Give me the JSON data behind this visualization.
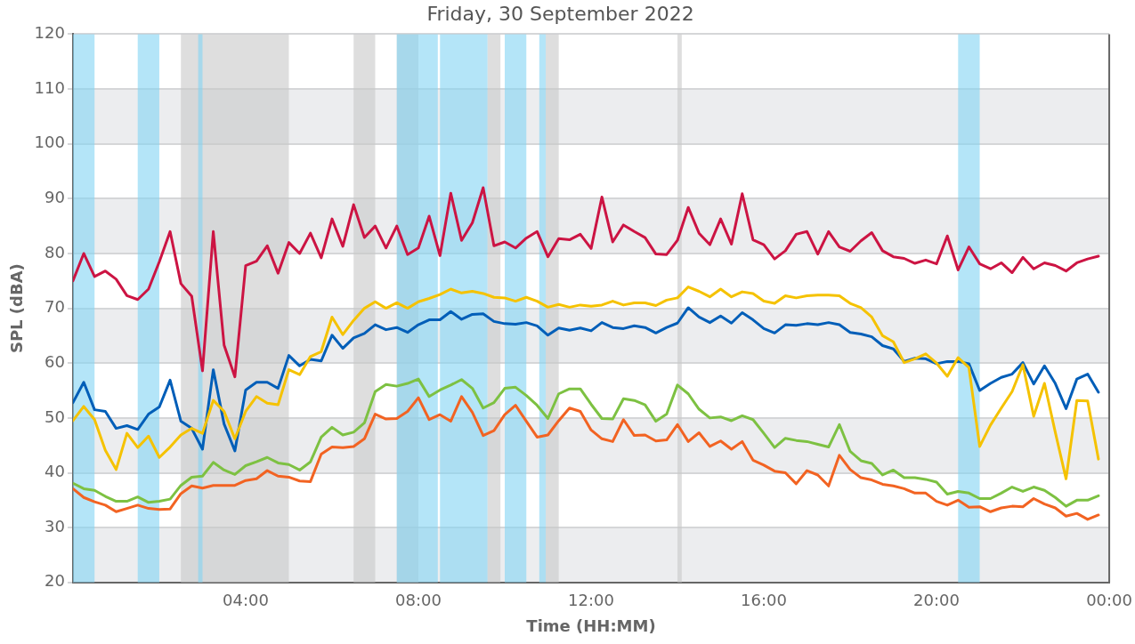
{
  "chart_data": {
    "type": "line",
    "title": "Friday, 30 September 2022",
    "xlabel": "Time (HH:MM)",
    "ylabel": "SPL (dBA)",
    "x": [
      0,
      0.25,
      0.5,
      0.75,
      1,
      1.25,
      1.5,
      1.75,
      2,
      2.25,
      2.5,
      2.75,
      3,
      3.25,
      3.5,
      3.75,
      4,
      4.25,
      4.5,
      4.75,
      5,
      5.25,
      5.5,
      5.75,
      6,
      6.25,
      6.5,
      6.75,
      7,
      7.25,
      7.5,
      7.75,
      8,
      8.25,
      8.5,
      8.75,
      9,
      9.25,
      9.5,
      9.75,
      10,
      10.25,
      10.5,
      10.75,
      11,
      11.25,
      11.5,
      11.75,
      12,
      12.25,
      12.5,
      12.75,
      13,
      13.25,
      13.5,
      13.75,
      14,
      14.25,
      14.5,
      14.75,
      15,
      15.25,
      15.5,
      15.75,
      16,
      16.25,
      16.5,
      16.75,
      17,
      17.25,
      17.5,
      17.75,
      18,
      18.25,
      18.5,
      18.75,
      19,
      19.25,
      19.5,
      19.75,
      20,
      20.25,
      20.5,
      20.75,
      21,
      21.25,
      21.5,
      21.75,
      22,
      22.25,
      22.5,
      22.75,
      23,
      23.25,
      23.5,
      23.75
    ],
    "series": [
      {
        "color": "#cc1443",
        "values": [
          75,
          80,
          75.8,
          76.8,
          75.3,
          72.3,
          71.6,
          73.5,
          78.5,
          84,
          74.5,
          72.2,
          58.6,
          84,
          63.3,
          57.5,
          77.8,
          78.6,
          81.4,
          76.4,
          82,
          80,
          83.7,
          79.2,
          86.3,
          81.3,
          88.9,
          82.9,
          85,
          81,
          85,
          79.8,
          81,
          86.8,
          79.6,
          91,
          82.4,
          85.6,
          92,
          81.4,
          82.1,
          81,
          82.8,
          84,
          79.4,
          82.7,
          82.5,
          83.5,
          80.9,
          90.3,
          82.1,
          85.2,
          84,
          82.9,
          79.9,
          79.8,
          82.4,
          88.4,
          83.7,
          81.6,
          86.3,
          81.7,
          90.9,
          82.5,
          81.6,
          79,
          80.5,
          83.5,
          84,
          79.9,
          84,
          81.2,
          80.4,
          82.3,
          83.8,
          80.5,
          79.4,
          79.1,
          78.2,
          78.8,
          78.1,
          83.2,
          77,
          81.2,
          78.1,
          77.2,
          78.3,
          76.5,
          79.3,
          77.2,
          78.3,
          77.8,
          76.8,
          78.3,
          79,
          79.5
        ]
      },
      {
        "color": "#f5c200",
        "values": [
          49.5,
          52.1,
          49.7,
          44.1,
          40.6,
          47.2,
          44.6,
          46.7,
          42.8,
          44.7,
          46.9,
          48.1,
          47.2,
          53.2,
          51.2,
          46.2,
          51.2,
          53.9,
          52.7,
          52.4,
          58.8,
          57.9,
          61.2,
          62.1,
          68.4,
          65.2,
          67.8,
          70,
          71.2,
          70,
          71,
          70,
          71.2,
          71.8,
          72.5,
          73.5,
          72.8,
          73.1,
          72.7,
          72,
          71.9,
          71.3,
          72,
          71.3,
          70.2,
          70.7,
          70.2,
          70.6,
          70.4,
          70.6,
          71.3,
          70.6,
          71,
          71,
          70.5,
          71.5,
          71.9,
          73.9,
          73.1,
          72.1,
          73.5,
          72.1,
          73,
          72.7,
          71.3,
          70.9,
          72.3,
          71.9,
          72.3,
          72.4,
          72.4,
          72.3,
          70.9,
          70.1,
          68.4,
          65,
          63.9,
          60.1,
          60.8,
          61.7,
          60,
          57.6,
          61,
          59.2,
          44.8,
          48.7,
          51.8,
          54.8,
          59.7,
          50.3,
          56.3,
          47.4,
          38.9,
          53.2,
          53.1,
          42.5
        ]
      },
      {
        "color": "#005eb8",
        "values": [
          52.8,
          56.5,
          51.5,
          51.2,
          48.1,
          48.6,
          47.9,
          50.7,
          52,
          56.9,
          49.4,
          48.1,
          44.3,
          58.8,
          48.9,
          44,
          55.1,
          56.5,
          56.5,
          55.4,
          61.4,
          59.5,
          60.7,
          60.4,
          65.1,
          62.7,
          64.6,
          65.4,
          67,
          66.1,
          66.5,
          65.6,
          67,
          67.9,
          67.9,
          69.4,
          68,
          68.9,
          69,
          67.6,
          67.2,
          67.1,
          67.4,
          66.8,
          65.1,
          66.4,
          66,
          66.4,
          65.9,
          67.4,
          66.5,
          66.3,
          66.8,
          66.5,
          65.5,
          66.5,
          67.3,
          70.1,
          68.4,
          67.4,
          68.6,
          67.3,
          69.2,
          67.9,
          66.3,
          65.5,
          67,
          66.9,
          67.2,
          67,
          67.4,
          67,
          65.6,
          65.3,
          64.8,
          63.2,
          62.6,
          60.3,
          60.9,
          60.8,
          59.9,
          60.3,
          60.3,
          59.9,
          55,
          56.3,
          57.4,
          58,
          60.1,
          56.2,
          59.5,
          56.3,
          51.7,
          57.1,
          58,
          54.7
        ]
      },
      {
        "color": "#7dc142",
        "values": [
          38.1,
          37.1,
          36.8,
          35.7,
          34.8,
          34.8,
          35.6,
          34.6,
          34.8,
          35.2,
          37.7,
          39.2,
          39.4,
          41.9,
          40.5,
          39.7,
          41.3,
          42,
          42.8,
          41.8,
          41.5,
          40.5,
          42,
          46.5,
          48.3,
          46.9,
          47.4,
          49.1,
          54.8,
          56.1,
          55.8,
          56.3,
          57.1,
          53.9,
          55.1,
          56,
          57,
          55.4,
          51.8,
          52.8,
          55.4,
          55.6,
          54.1,
          52.3,
          49.9,
          54.4,
          55.3,
          55.3,
          52.5,
          49.9,
          49.8,
          53.5,
          53.2,
          52.4,
          49.4,
          50.7,
          56,
          54.4,
          51.6,
          50,
          50.2,
          49.5,
          50.4,
          49.7,
          47.2,
          44.6,
          46.3,
          45.9,
          45.7,
          45.2,
          44.7,
          48.8,
          43.9,
          42.2,
          41.7,
          39.6,
          40.5,
          39.1,
          39.1,
          38.8,
          38.3,
          36.1,
          36.6,
          36.3,
          35.3,
          35.3,
          36.3,
          37.4,
          36.6,
          37.4,
          36.8,
          35.5,
          33.9,
          35,
          35,
          35.8
        ]
      },
      {
        "color": "#f26322",
        "values": [
          37.1,
          35.5,
          34.7,
          34.1,
          32.9,
          33.5,
          34.1,
          33.5,
          33.3,
          33.4,
          36.2,
          37.6,
          37.2,
          37.7,
          37.7,
          37.7,
          38.6,
          38.9,
          40.4,
          39.4,
          39.2,
          38.5,
          38.4,
          43.4,
          44.7,
          44.6,
          44.8,
          46.2,
          50.7,
          49.8,
          49.9,
          51.2,
          53.7,
          49.7,
          50.6,
          49.4,
          53.9,
          51,
          46.8,
          47.7,
          50.6,
          52.3,
          49.4,
          46.5,
          46.9,
          49.5,
          51.8,
          51.2,
          47.8,
          46.2,
          45.7,
          49.7,
          46.8,
          46.9,
          45.8,
          46,
          48.8,
          45.7,
          47.3,
          44.8,
          45.8,
          44.3,
          45.7,
          42.3,
          41.4,
          40.3,
          40,
          38,
          40.4,
          39.6,
          37.6,
          43.2,
          40.6,
          39.1,
          38.7,
          37.9,
          37.6,
          37.1,
          36.3,
          36.3,
          34.8,
          34.1,
          35,
          33.7,
          33.8,
          32.9,
          33.6,
          33.9,
          33.8,
          35.3,
          34.3,
          33.6,
          32.1,
          32.6,
          31.5,
          32.3
        ]
      }
    ],
    "xlim": [
      0,
      24
    ],
    "xticks": [
      {
        "value": 4,
        "label": "04:00"
      },
      {
        "value": 8,
        "label": "08:00"
      },
      {
        "value": 12,
        "label": "12:00"
      },
      {
        "value": 16,
        "label": "16:00"
      },
      {
        "value": 20,
        "label": "20:00"
      },
      {
        "value": 24,
        "label": "00:00"
      }
    ],
    "ylim": [
      20,
      120
    ],
    "yticks": [
      20,
      30,
      40,
      50,
      60,
      70,
      80,
      90,
      100,
      110,
      120
    ],
    "grid": "y",
    "bands": [
      {
        "axis": "x",
        "from": 2.5,
        "to": 5,
        "color": "#c8c8c8"
      },
      {
        "axis": "x",
        "from": 6.5,
        "to": 7,
        "color": "#c8c8c8"
      },
      {
        "axis": "x",
        "from": 7.5,
        "to": 8,
        "color": "#c8c8c8"
      },
      {
        "axis": "x",
        "from": 9.6,
        "to": 9.9,
        "color": "#c8c8c8"
      },
      {
        "axis": "x",
        "from": 10.95,
        "to": 11.25,
        "color": "#c8c8c8"
      },
      {
        "axis": "x",
        "from": 14,
        "to": 14.1,
        "color": "#c8c8c8"
      },
      {
        "axis": "x",
        "from": 0,
        "to": 0.5,
        "color": "#82d4f4"
      },
      {
        "axis": "x",
        "from": 1.5,
        "to": 2,
        "color": "#82d4f4"
      },
      {
        "axis": "x",
        "from": 2.9,
        "to": 3,
        "color": "#82d4f4"
      },
      {
        "axis": "x",
        "from": 7.5,
        "to": 8.45,
        "color": "#82d4f4"
      },
      {
        "axis": "x",
        "from": 8.5,
        "to": 9.6,
        "color": "#82d4f4"
      },
      {
        "axis": "x",
        "from": 10,
        "to": 10.5,
        "color": "#82d4f4"
      },
      {
        "axis": "x",
        "from": 10.8,
        "to": 10.95,
        "color": "#82d4f4"
      },
      {
        "axis": "x",
        "from": 20.5,
        "to": 21,
        "color": "#82d4f4"
      }
    ]
  }
}
